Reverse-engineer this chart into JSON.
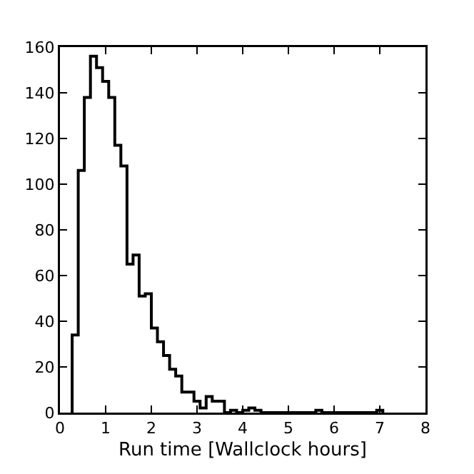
{
  "chart_data": {
    "type": "histogram",
    "xlabel": "Run time [Wallclock hours]",
    "color": "#000000",
    "bins": [
      0.267,
      0.4,
      0.533,
      0.667,
      0.8,
      0.933,
      1.067,
      1.2,
      1.333,
      1.467,
      1.6,
      1.733,
      1.867,
      2.0,
      2.133,
      2.267,
      2.4,
      2.533,
      2.667,
      2.8,
      2.933,
      3.067,
      3.2,
      3.333,
      3.467,
      3.6,
      3.733,
      3.867,
      4.0,
      4.133,
      4.267,
      4.4,
      4.533,
      4.667,
      4.8,
      4.933,
      5.067,
      5.2,
      5.333,
      5.467,
      5.6,
      5.733,
      5.867,
      6.0,
      6.133,
      6.267,
      6.4,
      6.533,
      6.667,
      6.8,
      6.933,
      7.067
    ],
    "values": [
      34,
      106,
      138,
      156,
      151,
      145,
      138,
      117,
      108,
      65,
      69,
      51,
      52,
      37,
      31,
      25,
      19,
      16,
      9,
      9,
      5,
      2,
      7,
      5,
      5,
      0,
      1,
      0,
      1,
      2,
      1,
      0,
      0,
      0,
      0,
      0,
      0,
      0,
      0,
      0,
      1,
      0,
      0,
      0,
      0,
      0,
      0,
      0,
      0,
      0,
      1
    ],
    "xlim": [
      0,
      8
    ],
    "xticks": [
      0,
      1,
      2,
      3,
      4,
      5,
      6,
      7,
      8
    ],
    "ylim": [
      0,
      160
    ],
    "yticks": [
      0,
      20,
      40,
      60,
      80,
      100,
      120,
      140,
      160
    ]
  }
}
